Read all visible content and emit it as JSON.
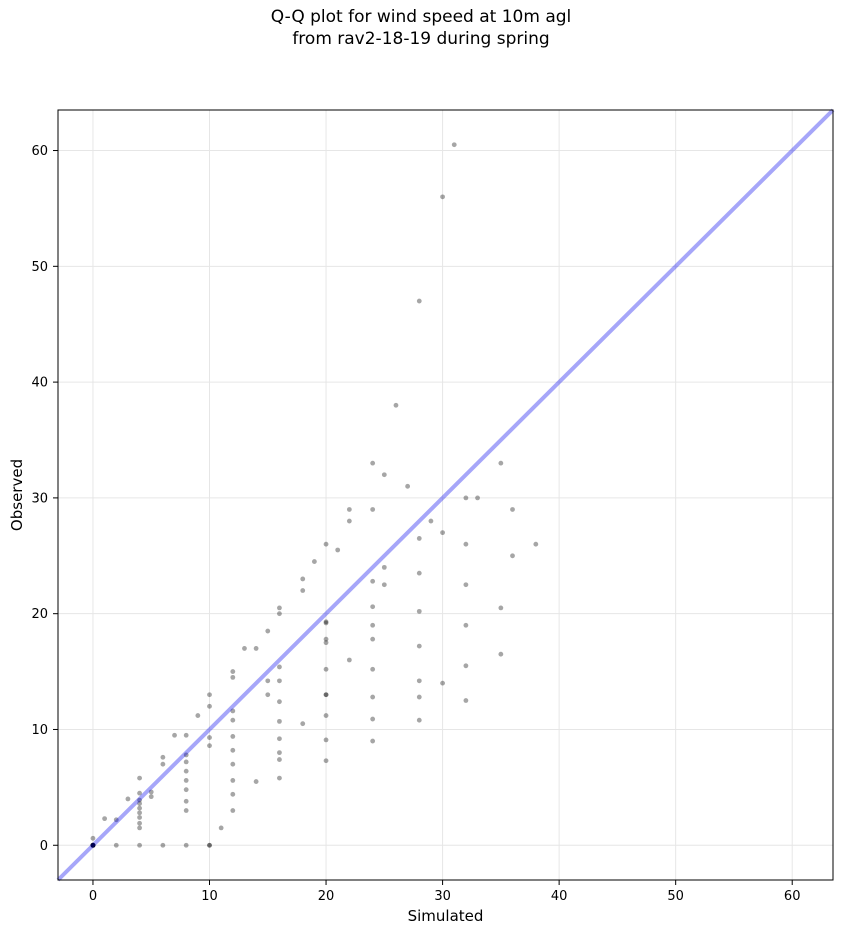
{
  "chart_data": {
    "type": "scatter",
    "title_lines": [
      "Q-Q plot for wind speed at 10m agl",
      "from rav2-18-19 during spring"
    ],
    "xlabel": "Simulated",
    "ylabel": "Observed",
    "xlim": [
      -3,
      63.5
    ],
    "ylim": [
      -3,
      63.5
    ],
    "x_ticks": [
      0,
      10,
      20,
      30,
      40,
      50,
      60
    ],
    "y_ticks": [
      0,
      10,
      20,
      30,
      40,
      50,
      60
    ],
    "grid": true,
    "reference_line": {
      "label": "y = x",
      "color": "#0000ee",
      "opacity": 0.35
    },
    "point_color": "#000000",
    "series": [
      {
        "x": [
          0,
          2,
          4,
          6,
          8,
          10,
          12,
          14,
          16,
          18,
          20,
          22,
          24,
          26,
          28,
          30,
          31
        ],
        "y": [
          0,
          2.2,
          4.5,
          7,
          9.5,
          12,
          14.5,
          17,
          20,
          23,
          26,
          29,
          33,
          38,
          47,
          56,
          60.5
        ]
      },
      {
        "x": [
          1,
          4,
          7,
          10,
          13,
          16,
          19,
          22,
          25
        ],
        "y": [
          2.3,
          5.8,
          9.5,
          13,
          17,
          20.5,
          24.5,
          28,
          32
        ]
      },
      {
        "x": [
          0,
          3,
          6,
          9,
          12,
          15,
          18,
          21,
          24,
          27
        ],
        "y": [
          0.6,
          4,
          7.6,
          11.2,
          15,
          18.5,
          22,
          25.5,
          29,
          31
        ]
      },
      {
        "x": [
          0,
          4,
          8,
          12,
          16,
          20,
          24,
          28,
          32,
          35
        ],
        "y": [
          0,
          3.9,
          7.8,
          11.6,
          15.4,
          19.2,
          22.8,
          26.5,
          30,
          33
        ]
      },
      {
        "x": [
          0,
          4,
          8,
          12,
          16,
          20,
          24,
          28,
          32,
          36
        ],
        "y": [
          0,
          3.6,
          7.2,
          10.8,
          14.2,
          17.5,
          20.6,
          23.5,
          26,
          29
        ]
      },
      {
        "x": [
          0,
          4,
          8,
          12,
          16,
          20,
          24,
          28,
          32,
          36,
          38
        ],
        "y": [
          0,
          3.2,
          6.4,
          9.4,
          12.4,
          15.2,
          17.8,
          20.2,
          22.5,
          25,
          26
        ]
      },
      {
        "x": [
          0,
          4,
          8,
          12,
          16,
          20,
          24,
          28,
          32,
          35
        ],
        "y": [
          0,
          2.8,
          5.6,
          8.2,
          10.7,
          13,
          15.2,
          17.2,
          19,
          20.5
        ]
      },
      {
        "x": [
          0,
          4,
          8,
          12,
          16,
          20,
          24,
          28,
          32,
          35
        ],
        "y": [
          0,
          2.4,
          4.8,
          7,
          9.2,
          11.2,
          12.8,
          14.2,
          15.5,
          16.5
        ]
      },
      {
        "x": [
          0,
          4,
          8,
          12,
          16,
          20,
          24,
          28,
          30
        ],
        "y": [
          0,
          1.9,
          3.8,
          5.6,
          7.4,
          9.1,
          10.9,
          12.8,
          14
        ]
      },
      {
        "x": [
          0,
          4,
          8,
          12,
          16,
          20,
          24,
          28,
          32
        ],
        "y": [
          0,
          1.5,
          3,
          4.4,
          5.8,
          7.3,
          9,
          10.8,
          12.5
        ]
      },
      {
        "x": [
          0,
          2,
          4,
          6,
          8,
          10
        ],
        "y": [
          0,
          0,
          0,
          0,
          0,
          0
        ]
      },
      {
        "x": [
          10,
          11,
          12,
          14,
          16,
          18,
          20,
          22,
          24
        ],
        "y": [
          0,
          1.5,
          3,
          5.5,
          8,
          10.5,
          13,
          16,
          19
        ]
      },
      {
        "x": [
          0,
          5,
          10,
          15,
          20,
          25,
          30,
          33
        ],
        "y": [
          0,
          4.2,
          8.6,
          13,
          17.8,
          22.5,
          27,
          30
        ]
      },
      {
        "x": [
          0,
          5,
          10,
          15,
          20,
          25,
          29
        ],
        "y": [
          0,
          4.6,
          9.3,
          14.2,
          19.3,
          24,
          28
        ]
      }
    ]
  }
}
